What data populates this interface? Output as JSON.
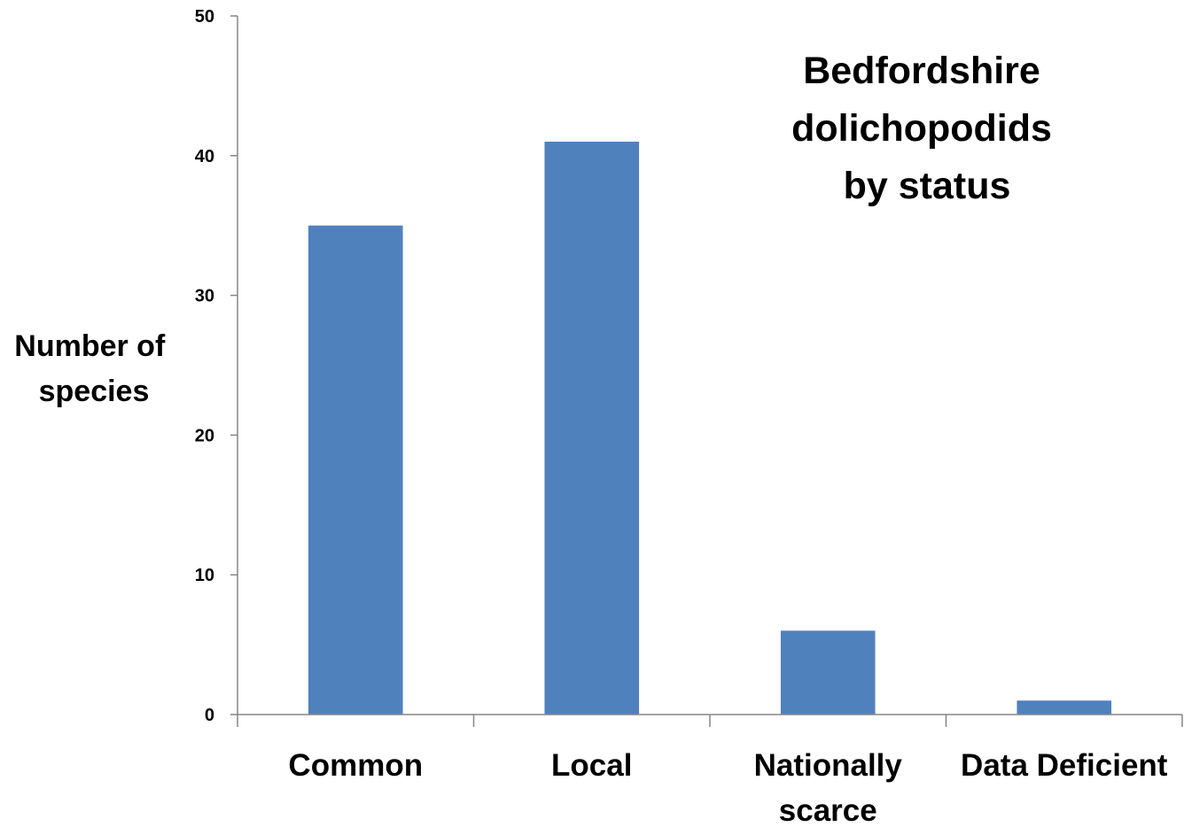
{
  "chart_data": {
    "type": "bar",
    "title_lines": [
      "Bedfordshire",
      "dolichopodids",
      "by status"
    ],
    "ylabel_lines": [
      "Number of",
      "species"
    ],
    "xlabel": "",
    "categories": [
      "Common",
      "Local",
      "Nationally scarce",
      "Data Deficient"
    ],
    "category_label_lines": [
      [
        "Common"
      ],
      [
        "Local"
      ],
      [
        "Nationally",
        "scarce"
      ],
      [
        "Data Deficient"
      ]
    ],
    "values": [
      35,
      41,
      6,
      1
    ],
    "ylim": [
      0,
      50
    ],
    "yticks": [
      0,
      10,
      20,
      30,
      40,
      50
    ],
    "bar_color": "#4f81bd",
    "axis_color": "#868686",
    "grid": false,
    "legend": "none"
  }
}
